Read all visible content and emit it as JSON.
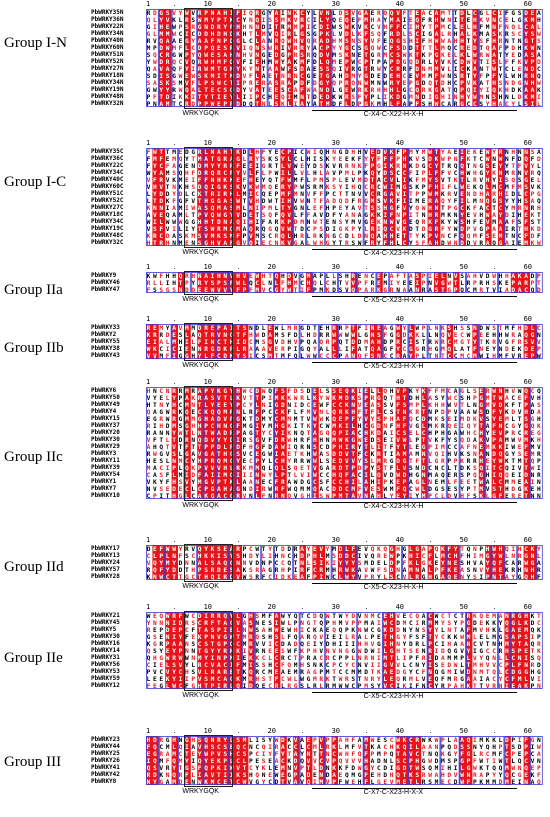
{
  "groups": [
    {
      "id": "I-N",
      "label": "Group I-N",
      "start": 9,
      "motif": "WRKYGQK",
      "zinc": "C-X4-C-X22-H-X-H",
      "seqs": [
        "PbWRKY35N",
        "PbWRKY36N",
        "PbWRKY22N",
        "PbWRKY34N",
        "PbWRKY40N",
        "PbWRKY60N",
        "PbWRKY51N",
        "PbWRKY52N",
        "PbWRKY27N",
        "PbWRKY18N",
        "PbWRKY34N",
        "PbWRKY19N",
        "PbWRKY48N",
        "PbWRKY32N"
      ]
    },
    {
      "id": "I-C",
      "label": "Group I-C",
      "start": 148,
      "motif": "WRKYGQK",
      "zinc": "C-X4-C-X23-H-X-H",
      "seqs": [
        "PbWRKY35C",
        "PbWRKY36C",
        "PbWRKY22C",
        "PbWRKY34C",
        "PbWRKY40C",
        "PbWRKY60C",
        "PbWRKY51C",
        "PbWRKY52C",
        "PbWRKY27C",
        "PbWRKY18C",
        "PbWRKY34C",
        "PbWRKY19C",
        "PbWRKY48C",
        "PbWRKY32C"
      ]
    },
    {
      "id": "IIa",
      "label": "Group IIa",
      "start": 272,
      "motif": "WRKYGQK",
      "zinc": "C-X5-C-X23-H-X-H",
      "seqs": [
        "PbWRKY9",
        "PbWRKY46",
        "PbWRKY47"
      ]
    },
    {
      "id": "IIb",
      "label": "Group IIb",
      "start": 324,
      "motif": "WRKYGQK",
      "zinc": "C-X5-C-X23-H-X-H",
      "seqs": [
        "PbWRKY33",
        "PbWRKY2",
        "PbWRKY55",
        "PbWRKY38",
        "PbWRKY43"
      ]
    },
    {
      "id": "IIc",
      "label": "Group IIc",
      "start": 387,
      "motif": "WRKYGQK",
      "zinc": "C-X4-C-X23-H-X-H",
      "seqs": [
        "PbWRKY6",
        "PbWRKY50",
        "PbWRKY49",
        "PbWRKY4",
        "PbWRKY15",
        "PbWRKY37",
        "PbWRKY20",
        "PbWRKY30",
        "PbWRKY29",
        "PbWRKY3",
        "PbWRKY11",
        "PbWRKY39",
        "PbWRKY54",
        "PbWRKY1",
        "PbWRKY7",
        "PbWRKY10"
      ]
    },
    {
      "id": "IId",
      "label": "Group IId",
      "start": 545,
      "motif": "WRKYGQK",
      "zinc": "C-X5-C-X23-H-X-H",
      "seqs": [
        "PbWRKY17",
        "PbWRKY13",
        "PbWRKY24",
        "PbWRKY57",
        "PbWRKY28"
      ]
    },
    {
      "id": "IIe",
      "label": "Group IIe",
      "start": 612,
      "motif": "WRKYGQK",
      "zinc": "C-X5-C-X23-H-X-H",
      "seqs": [
        "PbWRKY21",
        "PbWRKY45",
        "PbWRKY5",
        "PbWRKY30",
        "PbWRKY16",
        "PbWRKY14",
        "PbWRKY31",
        "PbWRKY56",
        "PbWRKY53",
        "PbWRKY59",
        "PbWRKY12"
      ]
    },
    {
      "id": "III",
      "label": "Group III",
      "start": 736,
      "motif": "WRKYGQK",
      "zinc": "C-X7-C-X23-H-X-X",
      "seqs": [
        "PbWRKY23",
        "PbWRKY44",
        "PbWRKY25",
        "PbWRKY26",
        "PbWRKY41",
        "PbWRKY42",
        "PbWRKY8"
      ]
    }
  ],
  "ruler_numbers": [
    "1",
    "10",
    "20",
    "30",
    "40",
    "50",
    "60"
  ],
  "colors": {
    "conserved": "#e8141b",
    "similar_text": "#e8141b",
    "box": "#3a3ad6",
    "text": "#000000",
    "white": "#ffffff"
  }
}
